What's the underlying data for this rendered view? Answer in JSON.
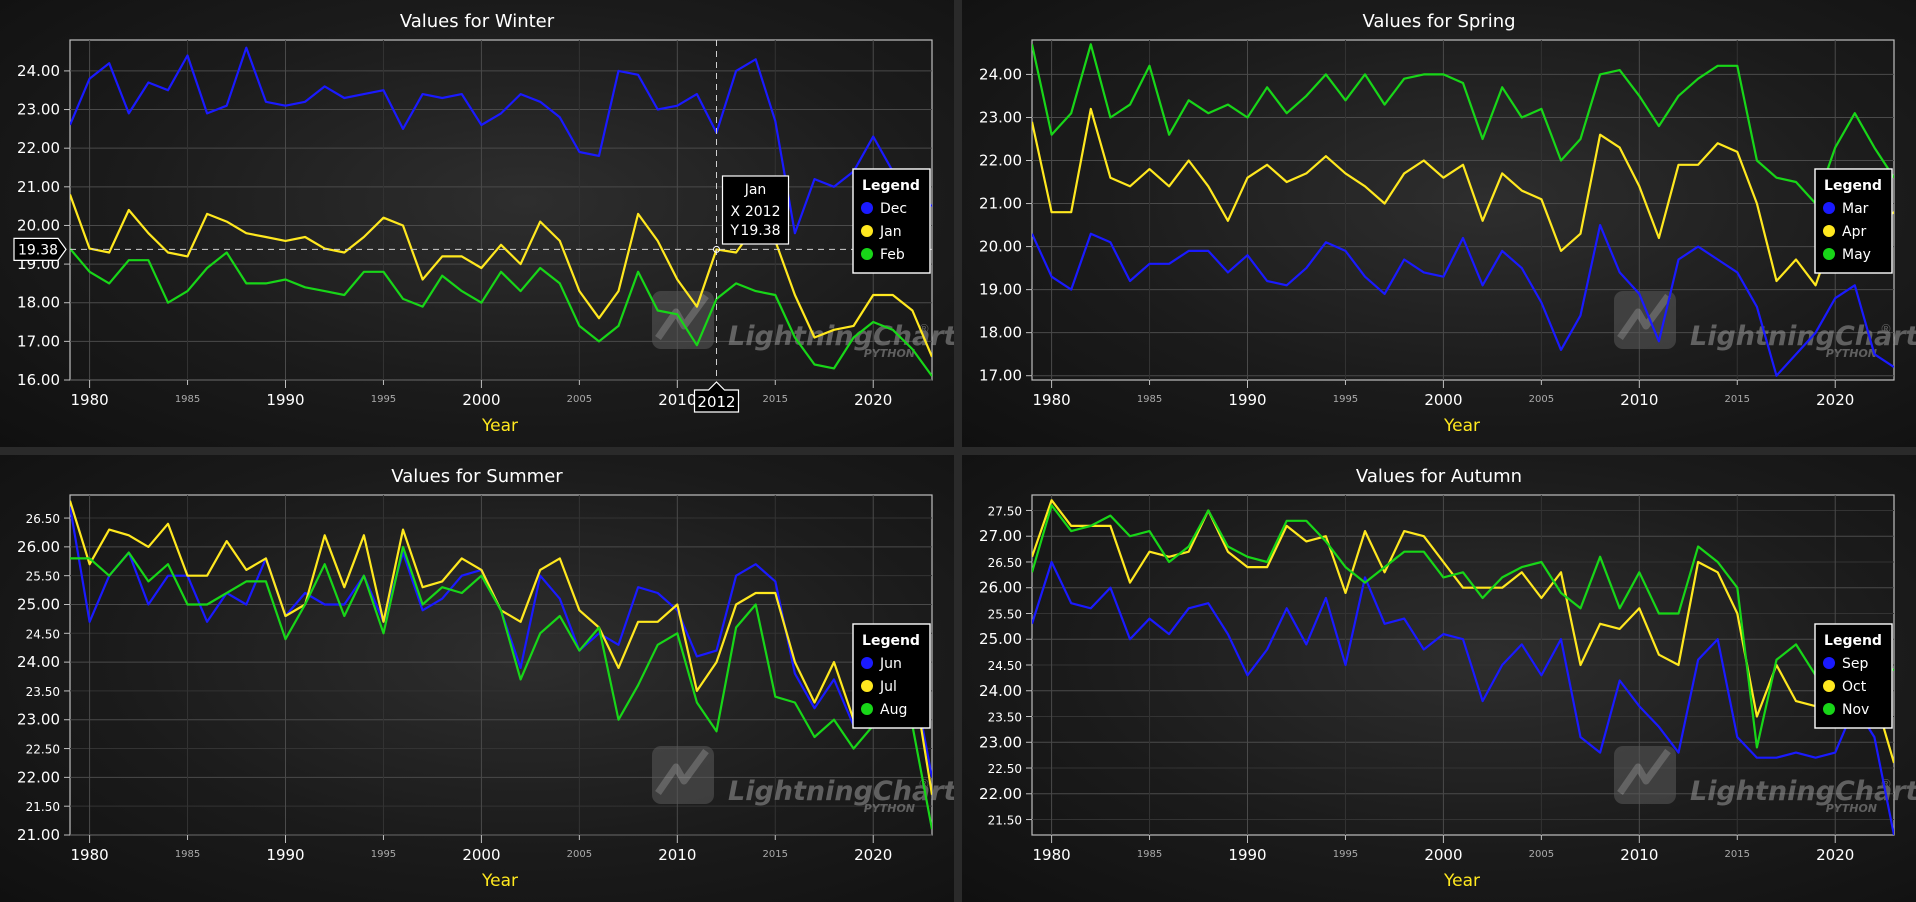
{
  "watermark": {
    "brand": "LightningChart",
    "reg": "®",
    "sub": "PYTHON"
  },
  "colors": {
    "blue": "#1a1aff",
    "yellow": "#ffe81f",
    "green": "#18d618"
  },
  "axis_title": "Year",
  "legend_title": "Legend",
  "cursor": {
    "series_name": "Jan",
    "x_label": "X",
    "y_label": "Y",
    "x_value": "2012",
    "y_value": "19.38",
    "x": 2012,
    "y": 19.38
  },
  "chart_data": [
    {
      "type": "line",
      "title": "Values for Winter",
      "xlabel": "Year",
      "xlim": [
        1979,
        2023
      ],
      "ylim": [
        16,
        24.8
      ],
      "y_ticks": [
        "24.00",
        "23.00",
        "22.00",
        "21.00",
        "20.00",
        "19.00",
        "18.00",
        "17.00",
        "16.00"
      ],
      "x_major_ticks": [
        "1980",
        "1990",
        "2000",
        "2010",
        "2020"
      ],
      "x_minor_ticks": [
        "1985",
        "1995",
        "2005",
        "2015"
      ],
      "legend": [
        "Dec",
        "Jan",
        "Feb"
      ],
      "series": [
        {
          "name": "Dec",
          "color": "#1a1aff",
          "x_start": 1979,
          "values": [
            22.6,
            23.8,
            24.2,
            22.9,
            23.7,
            23.5,
            24.4,
            22.9,
            23.1,
            24.6,
            23.2,
            23.1,
            23.2,
            23.6,
            23.3,
            23.4,
            23.5,
            22.5,
            23.4,
            23.3,
            23.4,
            22.6,
            22.9,
            23.4,
            23.2,
            22.8,
            21.9,
            21.8,
            24.0,
            23.9,
            23.0,
            23.1,
            23.4,
            22.4,
            24.0,
            24.3,
            22.7,
            19.8,
            21.2,
            21.0,
            21.4,
            22.3,
            21.4,
            20.9,
            20.5
          ]
        },
        {
          "name": "Jan",
          "color": "#ffe81f",
          "x_start": 1979,
          "values": [
            20.8,
            19.4,
            19.3,
            20.4,
            19.8,
            19.3,
            19.2,
            20.3,
            20.1,
            19.8,
            19.7,
            19.6,
            19.7,
            19.4,
            19.3,
            19.7,
            20.2,
            20.0,
            18.6,
            19.2,
            19.2,
            18.9,
            19.5,
            19.0,
            20.1,
            19.6,
            18.3,
            17.6,
            18.3,
            20.3,
            19.6,
            18.6,
            17.9,
            19.38,
            19.3,
            20.0,
            19.6,
            18.2,
            17.1,
            17.3,
            17.4,
            18.2,
            18.2,
            17.8,
            16.6
          ]
        },
        {
          "name": "Feb",
          "color": "#18d618",
          "x_start": 1979,
          "values": [
            19.4,
            18.8,
            18.5,
            19.1,
            19.1,
            18.0,
            18.3,
            18.9,
            19.3,
            18.5,
            18.5,
            18.6,
            18.4,
            18.3,
            18.2,
            18.8,
            18.8,
            18.1,
            17.9,
            18.7,
            18.3,
            18.0,
            18.8,
            18.3,
            18.9,
            18.5,
            17.4,
            17.0,
            17.4,
            18.8,
            17.8,
            17.7,
            16.9,
            18.1,
            18.5,
            18.3,
            18.2,
            17.1,
            16.4,
            16.3,
            17.1,
            17.5,
            17.3,
            16.8,
            16.1
          ]
        }
      ]
    },
    {
      "type": "line",
      "title": "Values for Spring",
      "xlabel": "Year",
      "xlim": [
        1979,
        2023
      ],
      "ylim": [
        16.9,
        24.8
      ],
      "y_ticks": [
        "24.00",
        "23.00",
        "22.00",
        "21.00",
        "20.00",
        "19.00",
        "18.00",
        "17.00"
      ],
      "x_major_ticks": [
        "1980",
        "1990",
        "2000",
        "2010",
        "2020"
      ],
      "x_minor_ticks": [
        "1985",
        "1995",
        "2005",
        "2015"
      ],
      "legend": [
        "Mar",
        "Apr",
        "May"
      ],
      "series": [
        {
          "name": "Mar",
          "color": "#1a1aff",
          "x_start": 1979,
          "values": [
            20.3,
            19.3,
            19.0,
            20.3,
            20.1,
            19.2,
            19.6,
            19.6,
            19.9,
            19.9,
            19.4,
            19.8,
            19.2,
            19.1,
            19.5,
            20.1,
            19.9,
            19.3,
            18.9,
            19.7,
            19.4,
            19.3,
            20.2,
            19.1,
            19.9,
            19.5,
            18.7,
            17.6,
            18.4,
            20.5,
            19.4,
            18.9,
            17.8,
            19.7,
            20.0,
            19.7,
            19.4,
            18.6,
            17.0,
            17.5,
            18.0,
            18.8,
            19.1,
            17.5,
            17.2
          ]
        },
        {
          "name": "Apr",
          "color": "#ffe81f",
          "x_start": 1979,
          "values": [
            22.9,
            20.8,
            20.8,
            23.2,
            21.6,
            21.4,
            21.8,
            21.4,
            22.0,
            21.4,
            20.6,
            21.6,
            21.9,
            21.5,
            21.7,
            22.1,
            21.7,
            21.4,
            21.0,
            21.7,
            22.0,
            21.6,
            21.9,
            20.6,
            21.7,
            21.3,
            21.1,
            19.9,
            20.3,
            22.6,
            22.3,
            21.4,
            20.2,
            21.9,
            21.9,
            22.4,
            22.2,
            21.0,
            19.2,
            19.7,
            19.1,
            20.4,
            20.3,
            20.5,
            20.8
          ]
        },
        {
          "name": "May",
          "color": "#18d618",
          "x_start": 1979,
          "values": [
            24.7,
            22.6,
            23.1,
            24.7,
            23.0,
            23.3,
            24.2,
            22.6,
            23.4,
            23.1,
            23.3,
            23.0,
            23.7,
            23.1,
            23.5,
            24.0,
            23.4,
            24.0,
            23.3,
            23.9,
            24.0,
            24.0,
            23.8,
            22.5,
            23.7,
            23.0,
            23.2,
            22.0,
            22.5,
            24.0,
            24.1,
            23.5,
            22.8,
            23.5,
            23.9,
            24.2,
            24.2,
            22.0,
            21.6,
            21.5,
            21.0,
            22.3,
            23.1,
            22.3,
            21.6
          ]
        }
      ]
    },
    {
      "type": "line",
      "title": "Values for Summer",
      "xlabel": "Year",
      "xlim": [
        1979,
        2023
      ],
      "ylim": [
        21,
        26.9
      ],
      "y_ticks": [
        "26.50",
        "26.00",
        "25.50",
        "25.00",
        "24.50",
        "24.00",
        "23.50",
        "23.00",
        "22.50",
        "22.00",
        "21.50",
        "21.00"
      ],
      "y_major_ticks": [
        "26.00",
        "25.00",
        "24.00",
        "23.00",
        "22.00",
        "21.00"
      ],
      "x_major_ticks": [
        "1980",
        "1990",
        "2000",
        "2010",
        "2020"
      ],
      "x_minor_ticks": [
        "1985",
        "1995",
        "2005",
        "2015"
      ],
      "legend": [
        "Jun",
        "Jul",
        "Aug"
      ],
      "series": [
        {
          "name": "Jun",
          "color": "#1a1aff",
          "x_start": 1979,
          "values": [
            26.7,
            24.7,
            25.5,
            25.9,
            25.0,
            25.5,
            25.5,
            24.7,
            25.2,
            25.0,
            25.8,
            24.8,
            25.2,
            25.0,
            25.0,
            25.5,
            24.7,
            25.9,
            24.9,
            25.1,
            25.5,
            25.6,
            24.9,
            23.9,
            25.5,
            25.1,
            24.2,
            24.5,
            24.3,
            25.3,
            25.2,
            24.9,
            24.1,
            24.2,
            25.5,
            25.7,
            25.4,
            23.8,
            23.2,
            23.7,
            22.9,
            23.0,
            23.4,
            23.8,
            22.0
          ]
        },
        {
          "name": "Jul",
          "color": "#ffe81f",
          "x_start": 1979,
          "values": [
            26.8,
            25.7,
            26.3,
            26.2,
            26.0,
            26.4,
            25.5,
            25.5,
            26.1,
            25.6,
            25.8,
            24.8,
            25.0,
            26.2,
            25.3,
            26.2,
            24.7,
            26.3,
            25.3,
            25.4,
            25.8,
            25.6,
            24.9,
            24.7,
            25.6,
            25.8,
            24.9,
            24.6,
            23.9,
            24.7,
            24.7,
            25.0,
            23.5,
            24.0,
            25.0,
            25.2,
            25.2,
            24.0,
            23.3,
            24.0,
            23.0,
            23.0,
            23.6,
            23.8,
            21.7
          ]
        },
        {
          "name": "Aug",
          "color": "#18d618",
          "x_start": 1979,
          "values": [
            25.8,
            25.8,
            25.5,
            25.9,
            25.4,
            25.7,
            25.0,
            25.0,
            25.2,
            25.4,
            25.4,
            24.4,
            25.0,
            25.7,
            24.8,
            25.5,
            24.5,
            26.0,
            25.0,
            25.3,
            25.2,
            25.5,
            24.9,
            23.7,
            24.5,
            24.8,
            24.2,
            24.6,
            23.0,
            23.6,
            24.3,
            24.5,
            23.3,
            22.8,
            24.6,
            25.0,
            23.4,
            23.3,
            22.7,
            23.0,
            22.5,
            22.9,
            23.5,
            22.9,
            21.1
          ]
        }
      ]
    },
    {
      "type": "line",
      "title": "Values for Autumn",
      "xlabel": "Year",
      "xlim": [
        1979,
        2023
      ],
      "ylim": [
        21.2,
        27.8
      ],
      "y_ticks": [
        "27.50",
        "27.00",
        "26.50",
        "26.00",
        "25.50",
        "25.00",
        "24.50",
        "24.00",
        "23.50",
        "23.00",
        "22.50",
        "22.00",
        "21.50"
      ],
      "y_major_ticks": [
        "27.00",
        "26.00",
        "25.00",
        "24.00",
        "23.00",
        "22.00"
      ],
      "x_major_ticks": [
        "1980",
        "1990",
        "2000",
        "2010",
        "2020"
      ],
      "x_minor_ticks": [
        "1985",
        "1995",
        "2005",
        "2015"
      ],
      "legend": [
        "Sep",
        "Oct",
        "Nov"
      ],
      "series": [
        {
          "name": "Sep",
          "color": "#1a1aff",
          "x_start": 1979,
          "values": [
            25.3,
            26.5,
            25.7,
            25.6,
            26.0,
            25.0,
            25.4,
            25.1,
            25.6,
            25.7,
            25.1,
            24.3,
            24.8,
            25.6,
            24.9,
            25.8,
            24.5,
            26.2,
            25.3,
            25.4,
            24.8,
            25.1,
            25.0,
            23.8,
            24.5,
            24.9,
            24.3,
            25.0,
            23.1,
            22.8,
            24.2,
            23.7,
            23.3,
            22.8,
            24.6,
            25.0,
            23.1,
            22.7,
            22.7,
            22.8,
            22.7,
            22.8,
            23.7,
            23.1,
            21.2
          ]
        },
        {
          "name": "Oct",
          "color": "#ffe81f",
          "x_start": 1979,
          "values": [
            26.6,
            27.7,
            27.2,
            27.2,
            27.2,
            26.1,
            26.7,
            26.6,
            26.7,
            27.5,
            26.7,
            26.4,
            26.4,
            27.2,
            26.9,
            27.0,
            25.9,
            27.1,
            26.3,
            27.1,
            27.0,
            26.5,
            26.0,
            26.0,
            26.0,
            26.3,
            25.8,
            26.3,
            24.5,
            25.3,
            25.2,
            25.6,
            24.7,
            24.5,
            26.5,
            26.3,
            25.5,
            23.5,
            24.5,
            23.8,
            23.7,
            23.9,
            23.8,
            23.9,
            22.6
          ]
        },
        {
          "name": "Nov",
          "color": "#18d618",
          "x_start": 1979,
          "values": [
            26.3,
            27.6,
            27.1,
            27.2,
            27.4,
            27.0,
            27.1,
            26.5,
            26.8,
            27.5,
            26.8,
            26.6,
            26.5,
            27.3,
            27.3,
            26.9,
            26.4,
            26.1,
            26.4,
            26.7,
            26.7,
            26.2,
            26.3,
            25.8,
            26.2,
            26.4,
            26.5,
            25.9,
            25.6,
            26.6,
            25.6,
            26.3,
            25.5,
            25.5,
            26.8,
            26.5,
            26.0,
            22.9,
            24.6,
            24.9,
            24.3,
            24.7,
            25.0,
            24.6,
            24.4
          ]
        }
      ]
    }
  ]
}
